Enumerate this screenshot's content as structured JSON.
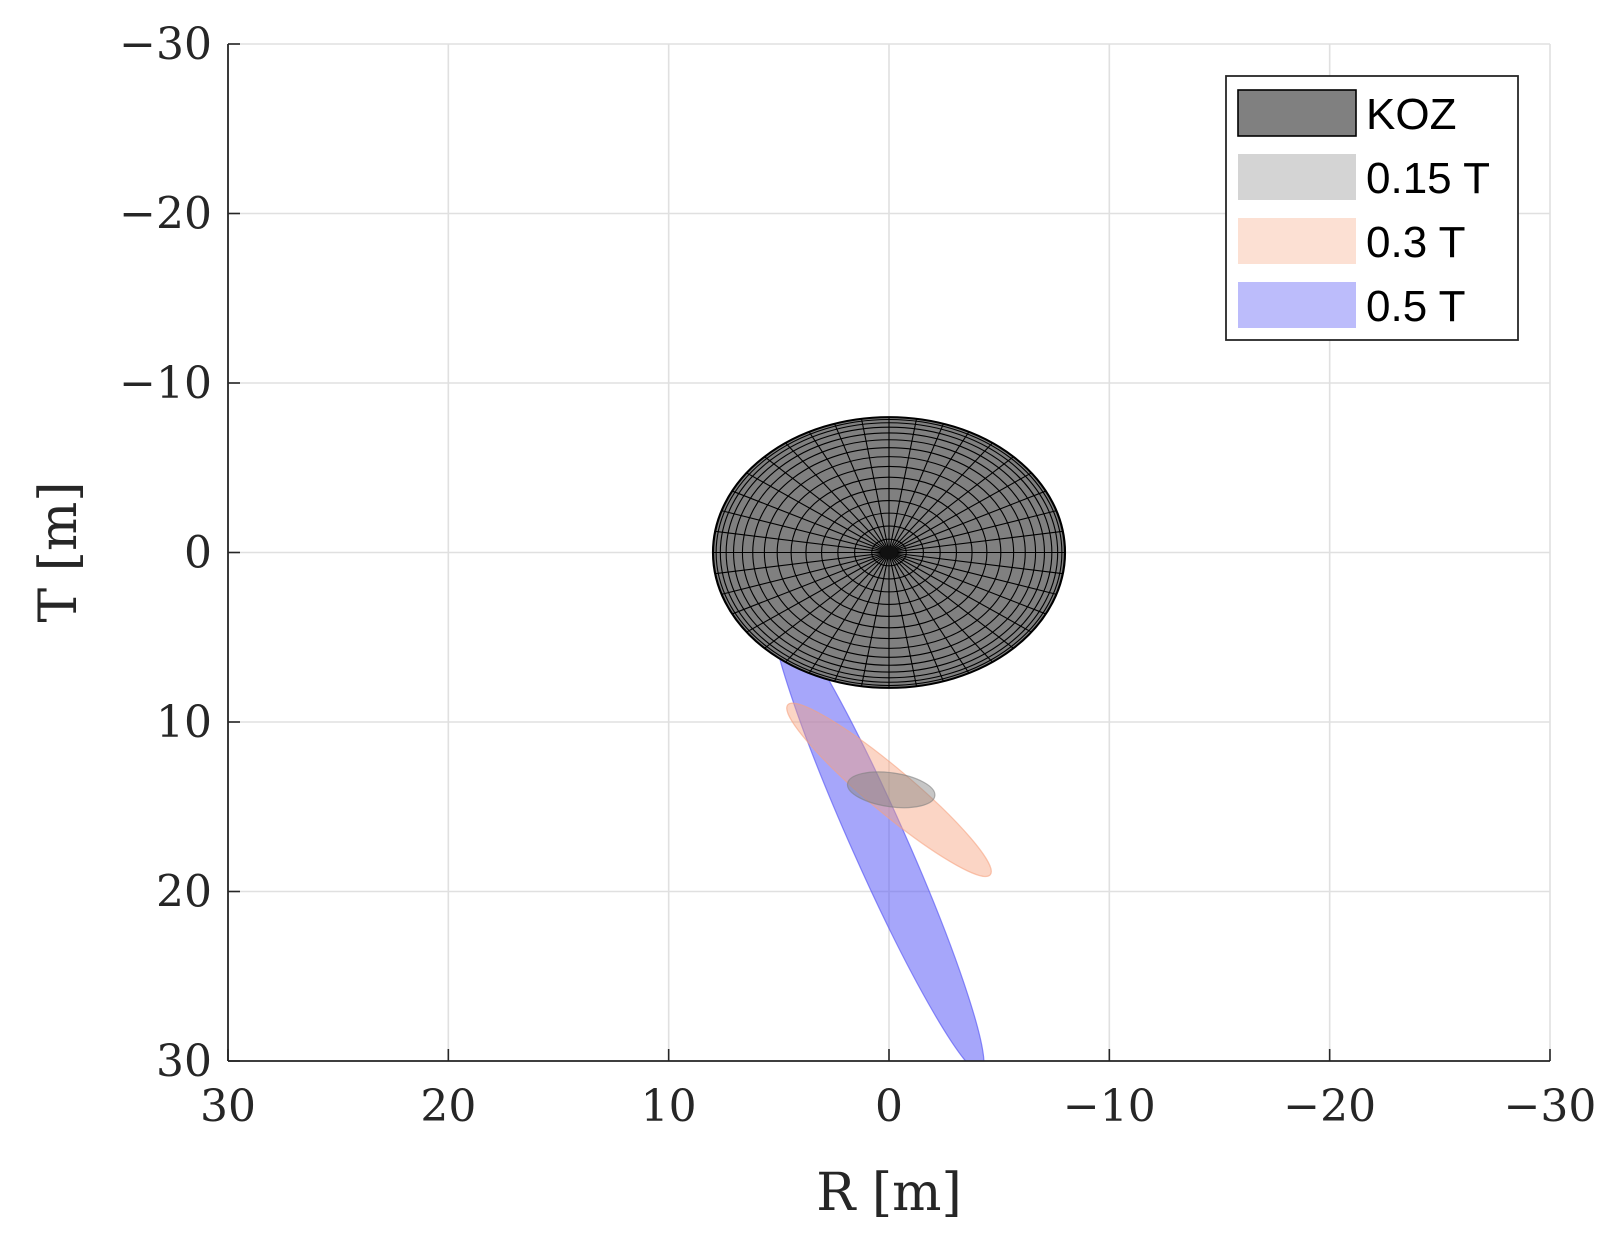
{
  "chart_data": {
    "type": "area",
    "title": "",
    "xlabel": "R [m]",
    "ylabel": "T [m]",
    "xlim": [
      30,
      -30
    ],
    "ylim": [
      -30,
      30
    ],
    "x_reversed": true,
    "y_reversed": true,
    "grid": true,
    "xticks": [
      30,
      20,
      10,
      0,
      -10,
      -20,
      -30
    ],
    "xtick_labels": [
      "30",
      "20",
      "10",
      "0",
      "−10",
      "−20",
      "−30"
    ],
    "yticks": [
      -30,
      -20,
      -10,
      0,
      10,
      20,
      30
    ],
    "ytick_labels": [
      "−30",
      "−20",
      "−10",
      "0",
      "10",
      "20",
      "30"
    ],
    "legend_placement": "top-right",
    "series": [
      {
        "name": "KOZ",
        "shape": "ellipse",
        "center": [
          0,
          0
        ],
        "semi_axis_R": 8,
        "semi_axis_T": 8,
        "color": "#808080",
        "edge_color": "#000000",
        "opacity": 1.0
      },
      {
        "name": "0.15 T",
        "shape": "ellipse",
        "center": [
          -0.1,
          14
        ],
        "semi_axis_major": 2.0,
        "semi_axis_minor": 1.0,
        "rotation_deg": 8,
        "color": "#808080",
        "opacity": 0.45
      },
      {
        "name": "0.3 T",
        "shape": "ellipse",
        "center": [
          0,
          14
        ],
        "semi_axis_major": 6.0,
        "semi_axis_minor": 1.3,
        "rotation_deg": 40,
        "color": "#f7a27e",
        "opacity": 0.45
      },
      {
        "name": "0.5 T",
        "shape": "ellipse",
        "center": [
          0.5,
          17
        ],
        "semi_axis_major": 11.5,
        "semi_axis_minor": 1.6,
        "rotation_deg": 66,
        "color": "#5c5cf5",
        "opacity": 0.55
      }
    ]
  }
}
